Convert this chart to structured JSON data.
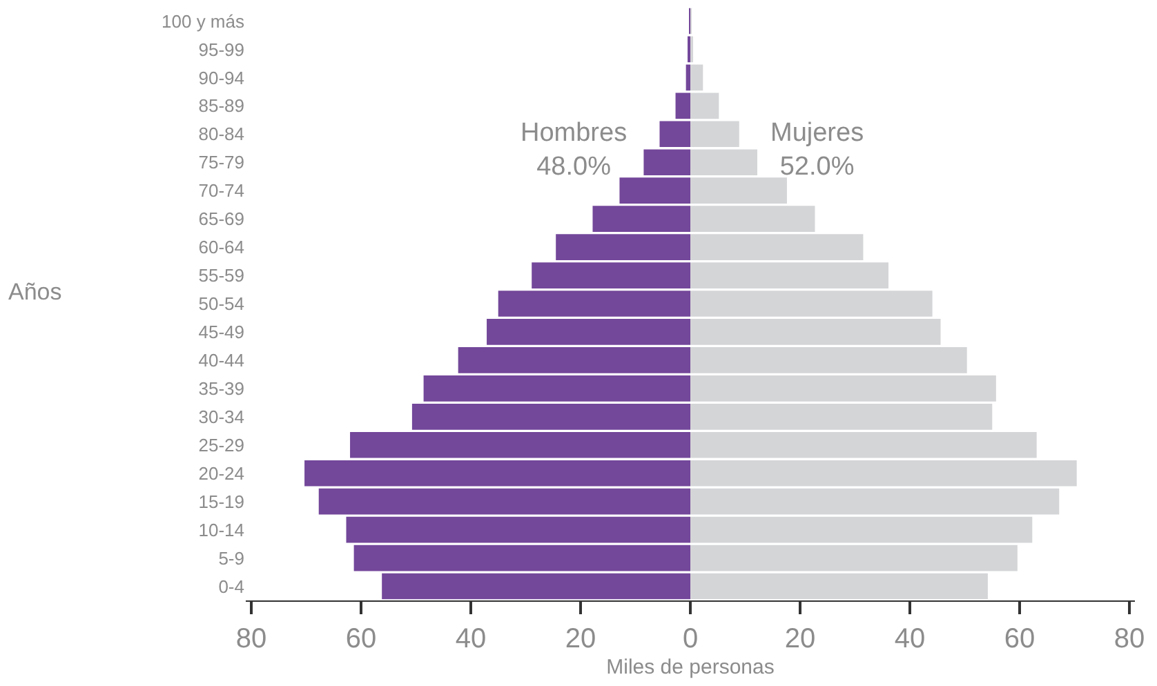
{
  "chart_data": {
    "type": "bar",
    "orientation": "horizontal",
    "categories": [
      "100 y más",
      "95-99",
      "90-94",
      "85-89",
      "80-84",
      "75-79",
      "70-74",
      "65-69",
      "60-64",
      "55-59",
      "50-54",
      "45-49",
      "40-44",
      "35-39",
      "30-34",
      "25-29",
      "20-24",
      "15-19",
      "10-14",
      "5-9",
      "0-4"
    ],
    "series": [
      {
        "name": "Hombres",
        "color": "#73479a",
        "values": [
          -0.1,
          -0.3,
          -0.8,
          -2.7,
          -5.6,
          -8.5,
          -12.9,
          -17.8,
          -24.5,
          -28.9,
          -35.0,
          -37.1,
          -42.3,
          -48.6,
          -50.7,
          -62.0,
          -70.3,
          -67.7,
          -62.7,
          -61.3,
          -56.2
        ]
      },
      {
        "name": "Mujeres",
        "color": "#d4d5d7",
        "values": [
          0.2,
          0.5,
          2.3,
          5.2,
          8.9,
          12.2,
          17.6,
          22.7,
          31.5,
          36.1,
          44.1,
          45.6,
          50.4,
          55.7,
          55.0,
          63.1,
          70.4,
          67.2,
          62.3,
          59.6,
          54.2
        ]
      }
    ],
    "xlim": [
      -81,
      81
    ],
    "xticks": [
      {
        "value": -80,
        "label": "80"
      },
      {
        "value": -60,
        "label": "60"
      },
      {
        "value": -40,
        "label": "40"
      },
      {
        "value": -20,
        "label": "20"
      },
      0,
      20,
      40,
      60,
      80
    ],
    "xlabel": "Miles de personas",
    "ylabel": "Años",
    "annotations": [
      "48.0%",
      "52.0%"
    ],
    "legend": false,
    "stacked": true
  }
}
